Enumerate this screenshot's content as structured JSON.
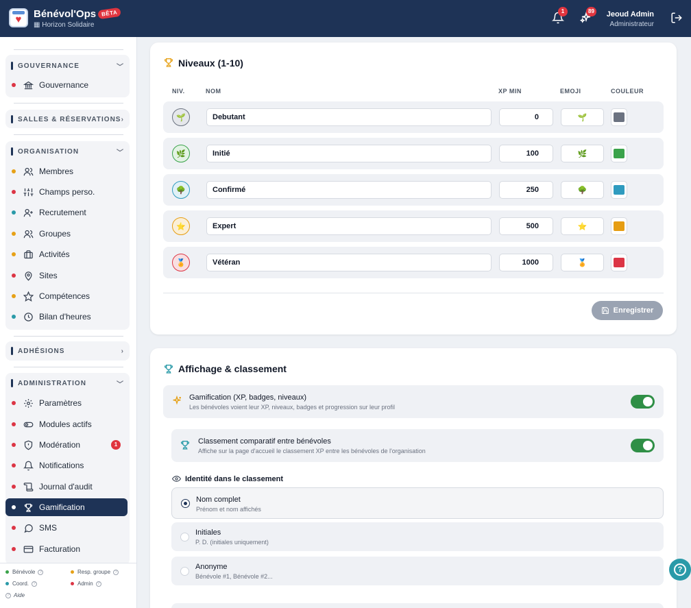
{
  "app": {
    "title": "Bénévol'Ops",
    "beta": "BÊTA",
    "org": "Horizon Solidaire"
  },
  "header": {
    "notifications_count": "1",
    "activity_count": "89",
    "user_name": "Jeoud Admin",
    "user_role": "Administrateur"
  },
  "sidebar": {
    "gouvernance": {
      "title": "GOUVERNANCE",
      "items": [
        {
          "label": "Gouvernance"
        }
      ]
    },
    "salles": {
      "title": "SALLES & RÉSERVATIONS"
    },
    "organisation": {
      "title": "ORGANISATION",
      "items": [
        {
          "label": "Membres"
        },
        {
          "label": "Champs perso."
        },
        {
          "label": "Recrutement"
        },
        {
          "label": "Groupes"
        },
        {
          "label": "Activités"
        },
        {
          "label": "Sites"
        },
        {
          "label": "Compétences"
        },
        {
          "label": "Bilan d'heures"
        }
      ]
    },
    "adhesions": {
      "title": "ADHÉSIONS"
    },
    "administration": {
      "title": "ADMINISTRATION",
      "items": [
        {
          "label": "Paramètres"
        },
        {
          "label": "Modules actifs"
        },
        {
          "label": "Modération",
          "count": "1"
        },
        {
          "label": "Notifications"
        },
        {
          "label": "Journal d'audit"
        },
        {
          "label": "Gamification"
        },
        {
          "label": "SMS"
        },
        {
          "label": "Facturation"
        }
      ]
    },
    "legend": {
      "benevole": "Bénévole",
      "resp": "Resp. groupe",
      "coord": "Coord.",
      "admin": "Admin",
      "aide": "Aide"
    }
  },
  "levels_card": {
    "title": "Niveaux (1-10)",
    "headers": {
      "niv": "NIV.",
      "nom": "NOM",
      "xp": "XP MIN",
      "emoji": "EMOJI",
      "couleur": "COULEUR"
    },
    "rows": [
      {
        "name": "Debutant",
        "xp": "0",
        "emoji": "🌱",
        "color": "#6b7280",
        "ring": "#6b7280",
        "bg": "#e5e7eb"
      },
      {
        "name": "Initié",
        "xp": "100",
        "emoji": "🌿",
        "color": "#3aa34a",
        "ring": "#3aa34a",
        "bg": "#e3f3e4"
      },
      {
        "name": "Confirmé",
        "xp": "250",
        "emoji": "🌳",
        "color": "#2f9bbf",
        "ring": "#2f9bbf",
        "bg": "#e0f1f7"
      },
      {
        "name": "Expert",
        "xp": "500",
        "emoji": "⭐",
        "color": "#e69d12",
        "ring": "#e69d12",
        "bg": "#fbefd6"
      },
      {
        "name": "Vétéran",
        "xp": "1000",
        "emoji": "🏅",
        "color": "#dc3545",
        "ring": "#dc3545",
        "bg": "#f9dfe1"
      }
    ],
    "save_label": "Enregistrer"
  },
  "display_card": {
    "title": "Affichage & classement",
    "gamification": {
      "title": "Gamification (XP, badges, niveaux)",
      "sub": "Les bénévoles voient leur XP, niveaux, badges et progression sur leur profil"
    },
    "ranking": {
      "title": "Classement comparatif entre bénévoles",
      "sub": "Affiche sur la page d'accueil le classement XP entre les bénévoles de l'organisation"
    },
    "identity_title": "Identité dans le classement",
    "options": [
      {
        "title": "Nom complet",
        "sub": "Prénom et nom affichés"
      },
      {
        "title": "Initiales",
        "sub": "P. D. (initiales uniquement)"
      },
      {
        "title": "Anonyme",
        "sub": "Bénévole #1, Bénévole #2..."
      }
    ]
  }
}
